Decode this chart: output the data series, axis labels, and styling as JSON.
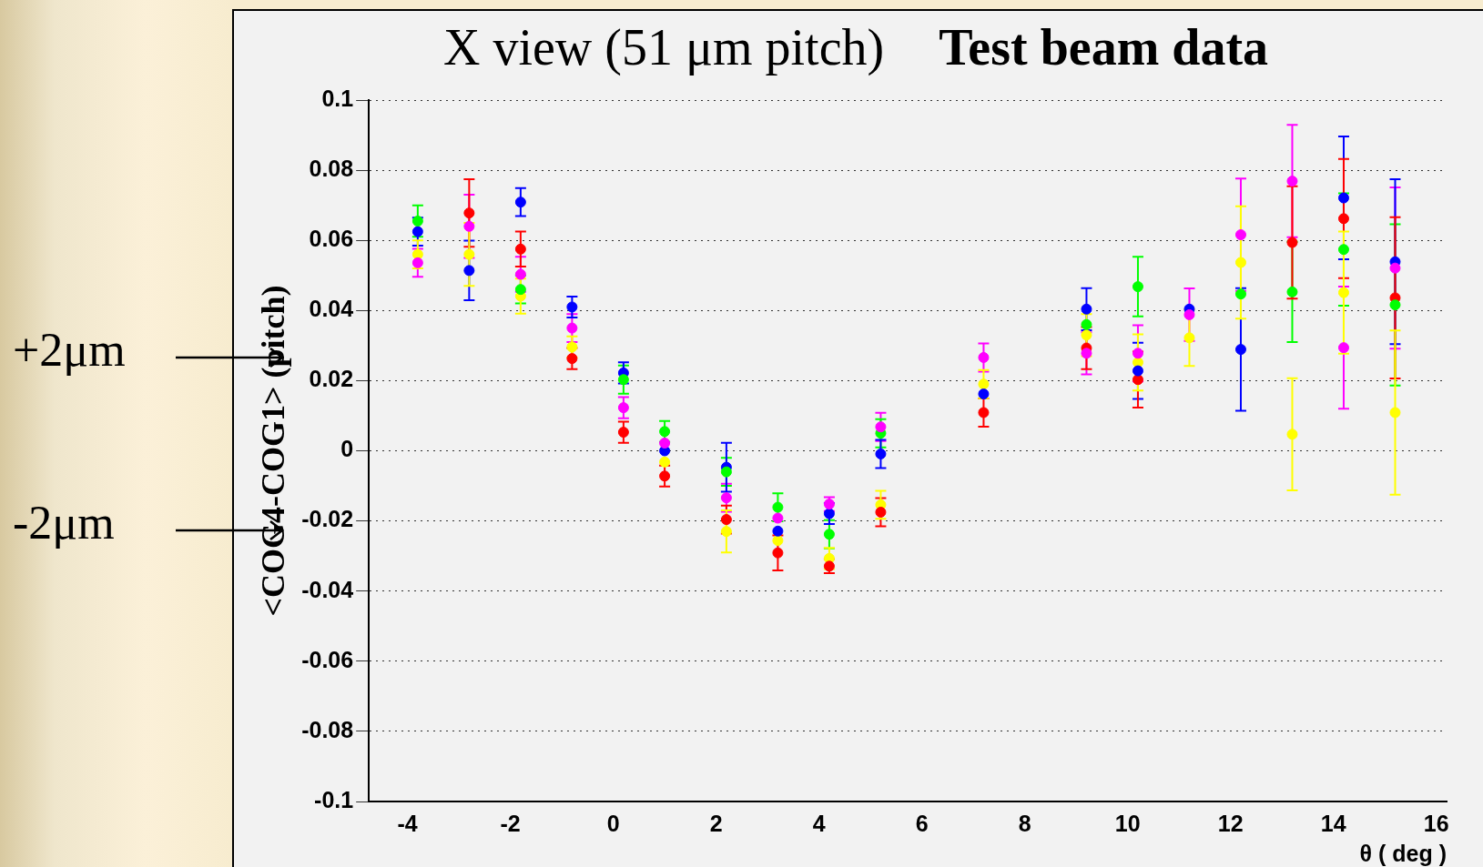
{
  "chart_data": {
    "type": "scatter",
    "title": "X view (51 μm pitch)",
    "subtitle": "Test beam data",
    "xlabel": "θ ( deg )",
    "ylabel": "<COG4-COG1> (pitch)",
    "annotations": [
      "+2μm",
      "-2μm"
    ],
    "x": [
      -3.8,
      -2.8,
      -1.8,
      -0.8,
      0.2,
      1,
      2.2,
      3.2,
      4.2,
      5.2,
      7.2,
      9.2,
      10.2,
      11.2,
      12.2,
      13.2,
      14.2,
      15.2
    ],
    "series": [
      {
        "color": "#ff00ff",
        "values": [
          0.0536,
          0.064,
          0.0503,
          0.035,
          0.0123,
          0.0022,
          -0.0134,
          -0.0192,
          -0.0152,
          0.0068,
          0.0266,
          0.0278,
          0.0278,
          0.0388,
          0.0616,
          0.0769,
          0.0294,
          0.0521
        ],
        "errors": [
          0.004,
          0.009,
          0.005,
          0.004,
          0.003,
          null,
          0.004,
          null,
          0.002,
          0.004,
          0.004,
          0.006,
          0.008,
          0.0075,
          0.016,
          0.016,
          0.0174,
          0.023
        ]
      },
      {
        "color": "#00ff00",
        "values": [
          0.0655,
          null,
          0.046,
          null,
          0.0203,
          0.0055,
          -0.006,
          -0.0161,
          -0.0238,
          0.005,
          null,
          0.036,
          0.0468,
          null,
          0.0447,
          0.0453,
          0.0574,
          0.0416
        ],
        "errors": [
          0.0045,
          null,
          0.004,
          null,
          0.004,
          0.003,
          0.004,
          0.004,
          0.004,
          0.004,
          null,
          null,
          0.0085,
          null,
          null,
          0.0143,
          0.016,
          0.023
        ]
      },
      {
        "color": "#0000ff",
        "values": [
          0.0625,
          0.0514,
          0.0709,
          0.041,
          0.0222,
          0.0,
          -0.0047,
          -0.0229,
          -0.0179,
          -0.0009,
          0.0162,
          0.0404,
          0.0228,
          0.0404,
          0.0289,
          null,
          0.0721,
          0.0539
        ],
        "errors": [
          0.004,
          0.0085,
          0.004,
          0.003,
          0.003,
          null,
          0.007,
          null,
          0.003,
          0.004,
          null,
          0.006,
          0.008,
          null,
          0.0175,
          null,
          0.0175,
          0.0235
        ]
      },
      {
        "color": "#ff0000",
        "values": [
          null,
          0.0678,
          0.0575,
          0.0263,
          0.0053,
          -0.0072,
          -0.0196,
          -0.0291,
          -0.0329,
          -0.0175,
          0.0109,
          0.0293,
          0.0203,
          null,
          null,
          0.0594,
          0.0662,
          0.0436
        ],
        "errors": [
          null,
          0.0096,
          0.005,
          0.003,
          0.003,
          0.003,
          0.004,
          0.005,
          0.002,
          0.004,
          0.004,
          0.006,
          0.008,
          null,
          null,
          0.016,
          0.017,
          0.023
        ]
      },
      {
        "color": "#ffff00",
        "values": [
          0.056,
          0.056,
          0.0441,
          0.0296,
          null,
          -0.0032,
          -0.023,
          -0.0256,
          -0.0307,
          -0.0154,
          0.019,
          0.033,
          0.0252,
          0.0322,
          0.0537,
          0.0047,
          0.0451,
          0.0109
        ],
        "errors": [
          0.004,
          0.009,
          0.005,
          0.003,
          null,
          null,
          0.006,
          null,
          0.003,
          0.004,
          0.004,
          0.006,
          0.008,
          0.008,
          0.016,
          0.016,
          0.0174,
          0.0234
        ]
      }
    ],
    "xlim": [
      -4.75,
      16.2
    ],
    "xticks": [
      -4,
      -2,
      0,
      2,
      4,
      6,
      8,
      10,
      12,
      14,
      16
    ],
    "ylim": [
      -0.1,
      0.1
    ],
    "yticks": [
      -0.1,
      -0.08,
      -0.06,
      -0.04,
      -0.02,
      0,
      0.02,
      0.04,
      0.06,
      0.08,
      0.1
    ],
    "grid": "y",
    "legend": false,
    "marker": "circle"
  }
}
